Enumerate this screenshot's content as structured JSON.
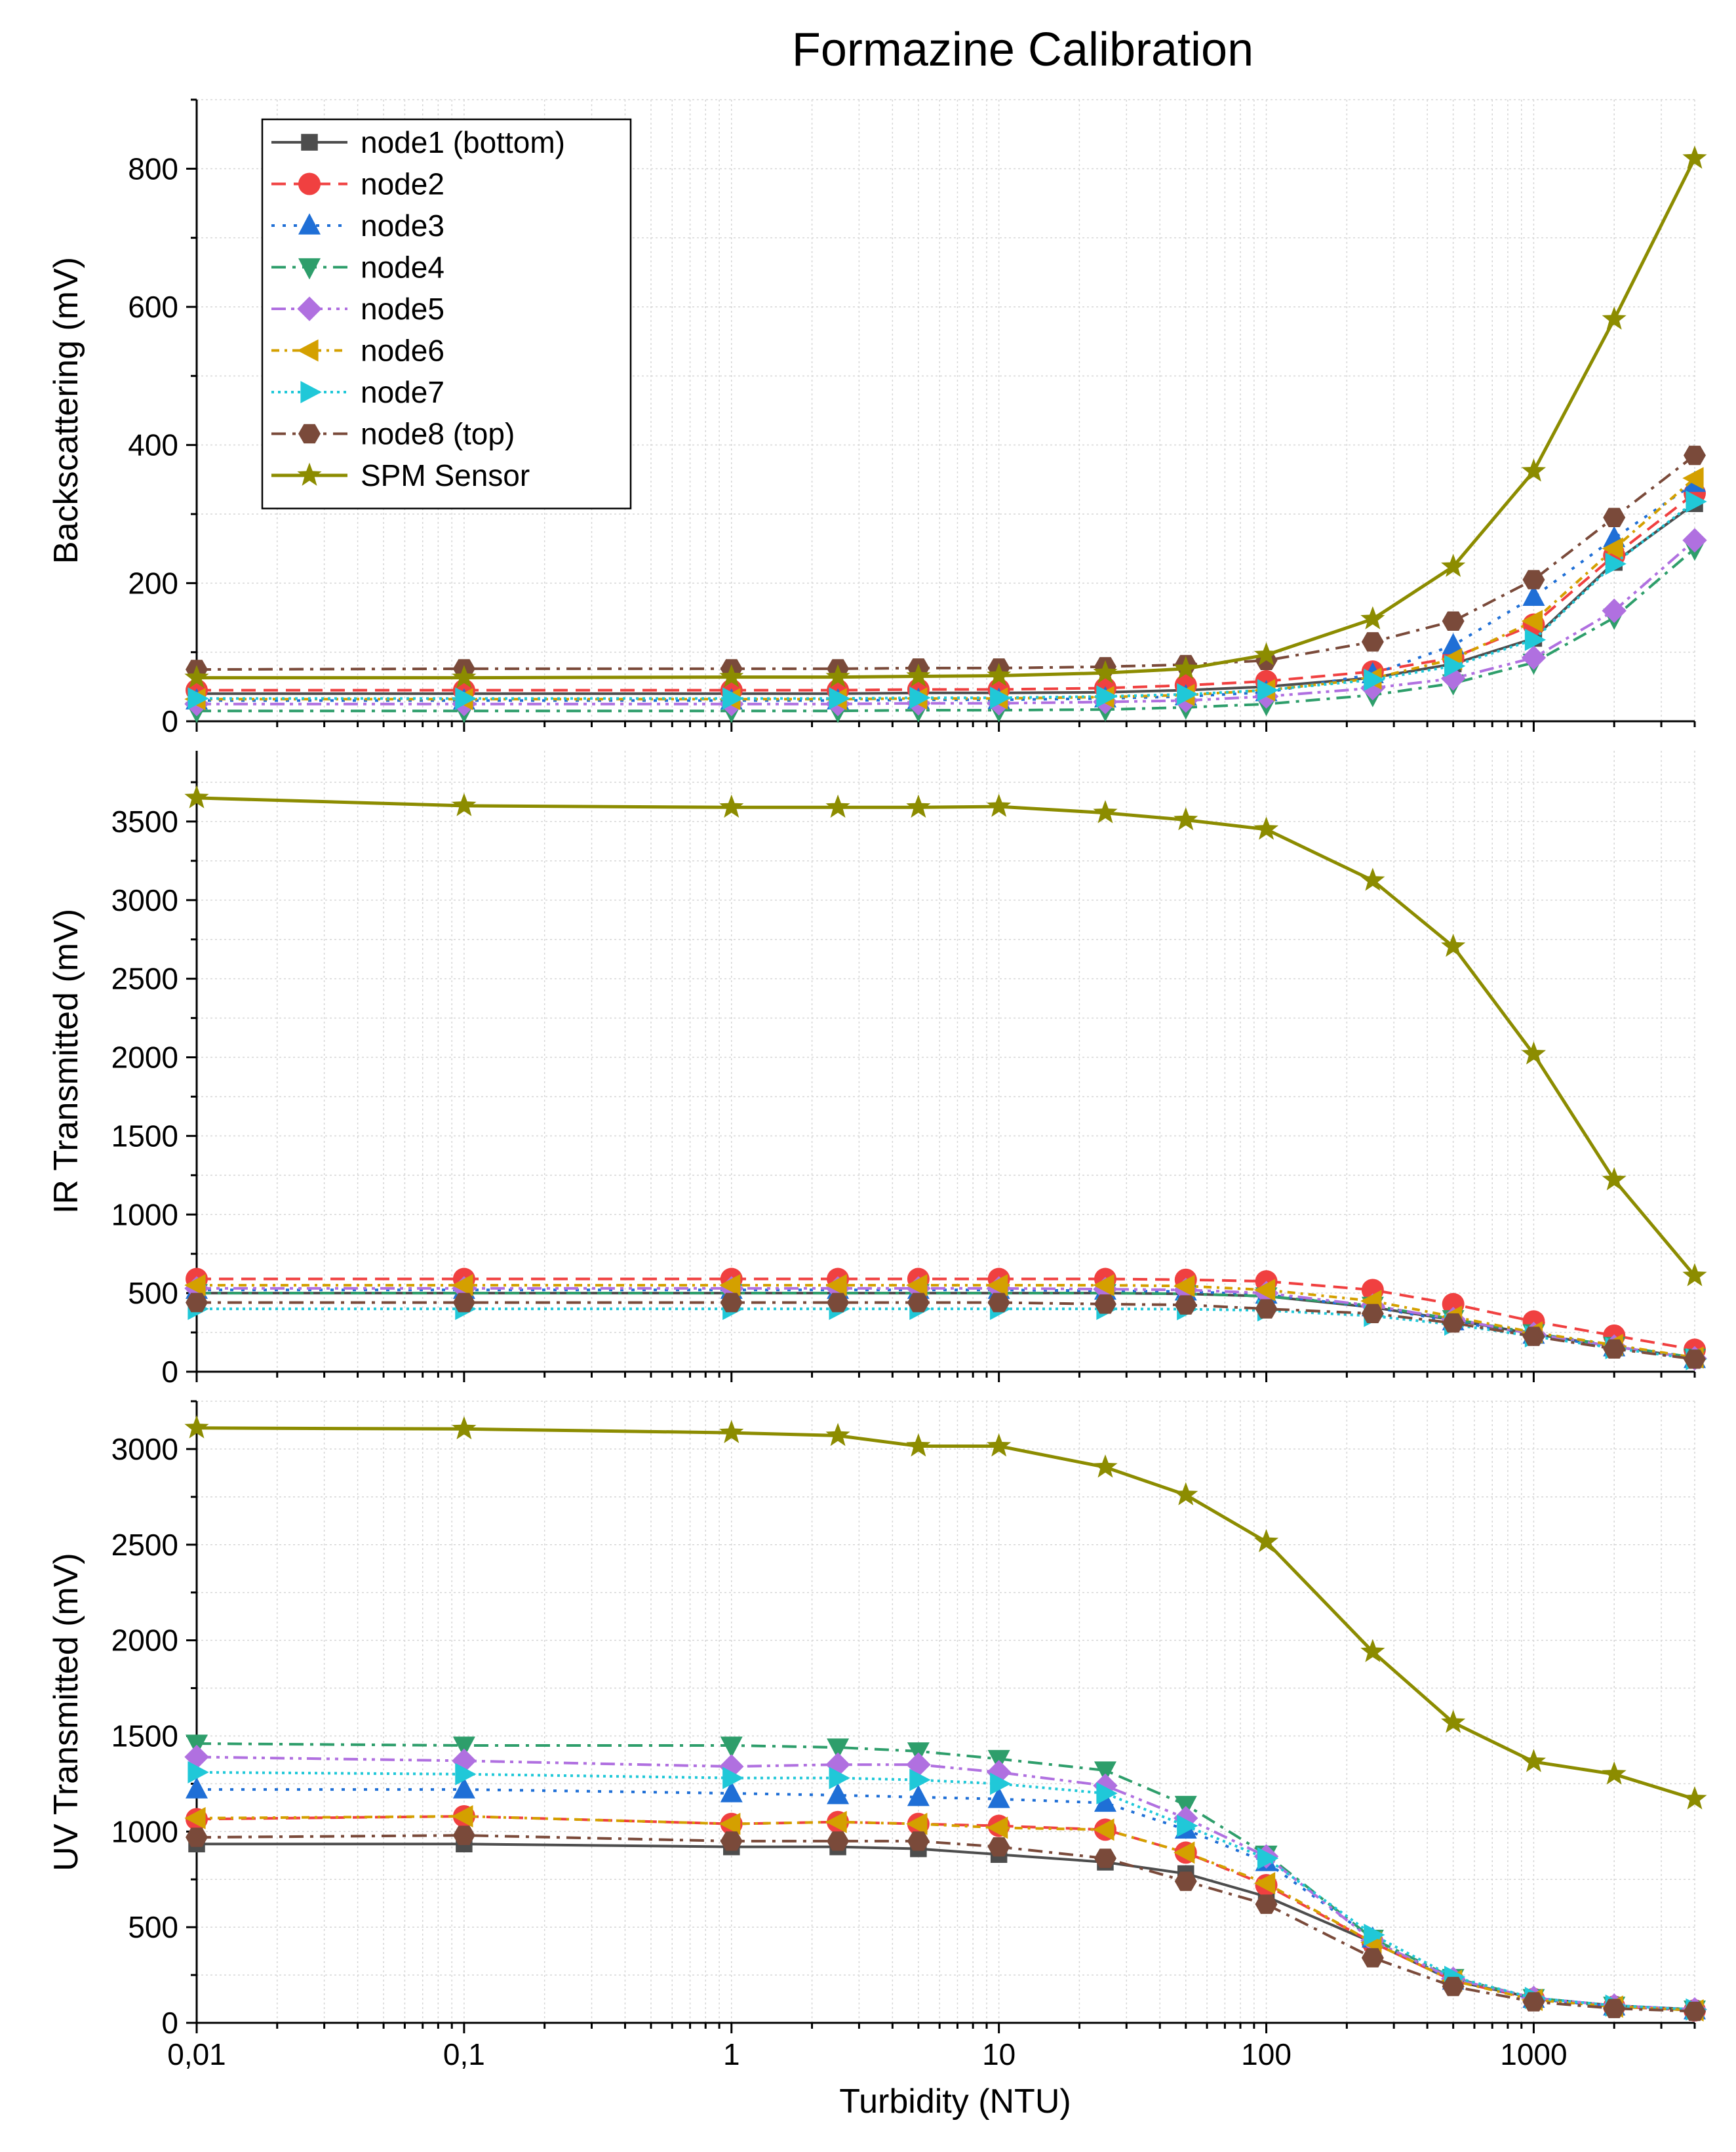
{
  "title": "Formazine Calibration",
  "chart_data": {
    "type": "line",
    "xscale": "log",
    "xlabel": "Turbidity (NTU)",
    "xlim": [
      0.01,
      4000
    ],
    "xticks": [
      {
        "value": 0.01,
        "label": "0,01"
      },
      {
        "value": 0.1,
        "label": "0,1"
      },
      {
        "value": 1,
        "label": "1"
      },
      {
        "value": 10,
        "label": "10"
      },
      {
        "value": 100,
        "label": "100"
      },
      {
        "value": 1000,
        "label": "1000"
      }
    ],
    "x": [
      0.01,
      0.1,
      1,
      2.5,
      5,
      10,
      25,
      50,
      100,
      250,
      500,
      1000,
      2000,
      4000
    ],
    "legend": {
      "position": "top-left",
      "entries": [
        "node1 (bottom)",
        "node2",
        "node3",
        "node4",
        "node5",
        "node6",
        "node7",
        "node8 (top)",
        "SPM Sensor"
      ]
    },
    "series_styles": [
      {
        "name": "node1 (bottom)",
        "color": "#4d4d4d",
        "marker": "square",
        "dash": "solid"
      },
      {
        "name": "node2",
        "color": "#f04040",
        "marker": "circle",
        "dash": "dash"
      },
      {
        "name": "node3",
        "color": "#1f6fd6",
        "marker": "triangle-up",
        "dash": "dot"
      },
      {
        "name": "node4",
        "color": "#2e9e6b",
        "marker": "triangle-down",
        "dash": "dashdot"
      },
      {
        "name": "node5",
        "color": "#b070e0",
        "marker": "diamond",
        "dash": "dashdotdot"
      },
      {
        "name": "node6",
        "color": "#d4a000",
        "marker": "triangle-left",
        "dash": "shortdashdot"
      },
      {
        "name": "node7",
        "color": "#20c8d8",
        "marker": "triangle-right",
        "dash": "shortdot"
      },
      {
        "name": "node8 (top)",
        "color": "#7a4a3a",
        "marker": "hexagon",
        "dash": "dashdot"
      },
      {
        "name": "SPM Sensor",
        "color": "#8c8c00",
        "marker": "star",
        "dash": "solid"
      }
    ],
    "panels": [
      {
        "ylabel": "Backscattering (mV)",
        "ylim": [
          0,
          900
        ],
        "yticks": [
          0,
          200,
          400,
          600,
          800
        ],
        "series": [
          {
            "name": "node1 (bottom)",
            "values": [
              40,
              40,
              40,
              40,
              41,
              41,
              42,
              45,
              50,
              63,
              83,
              120,
              230,
              315
            ]
          },
          {
            "name": "node2",
            "values": [
              45,
              45,
              45,
              45,
              46,
              46,
              48,
              52,
              58,
              72,
              92,
              140,
              240,
              330
            ]
          },
          {
            "name": "node3",
            "values": [
              30,
              30,
              30,
              30,
              31,
              31,
              33,
              36,
              42,
              68,
              110,
              180,
              265,
              345
            ]
          },
          {
            "name": "node4",
            "values": [
              15,
              15,
              15,
              15,
              16,
              16,
              17,
              20,
              25,
              38,
              55,
              85,
              150,
              250
            ]
          },
          {
            "name": "node5",
            "values": [
              25,
              25,
              25,
              25,
              26,
              26,
              28,
              30,
              36,
              48,
              62,
              92,
              160,
              262
            ]
          },
          {
            "name": "node6",
            "values": [
              32,
              32,
              32,
              32,
              33,
              33,
              35,
              38,
              45,
              62,
              90,
              145,
              250,
              352
            ]
          },
          {
            "name": "node7",
            "values": [
              33,
              33,
              33,
              33,
              34,
              34,
              36,
              39,
              45,
              60,
              80,
              118,
              228,
              318
            ]
          },
          {
            "name": "node8 (top)",
            "values": [
              75,
              76,
              76,
              76,
              77,
              77,
              79,
              82,
              88,
              115,
              145,
              205,
              295,
              385
            ]
          },
          {
            "name": "SPM Sensor",
            "values": [
              63,
              63,
              64,
              64,
              65,
              66,
              70,
              76,
              96,
              148,
              224,
              362,
              582,
              815
            ]
          }
        ]
      },
      {
        "ylabel": "IR Transmitted (mV)",
        "ylim": [
          0,
          3950
        ],
        "yticks": [
          0,
          500,
          1000,
          1500,
          2000,
          2500,
          3000,
          3500
        ],
        "series": [
          {
            "name": "node1 (bottom)",
            "values": [
              500,
              500,
              500,
              500,
              500,
              500,
              500,
              495,
              480,
              410,
              330,
              240,
              160,
              85
            ]
          },
          {
            "name": "node2",
            "values": [
              590,
              590,
              590,
              590,
              590,
              590,
              590,
              585,
              575,
              520,
              430,
              320,
              230,
              140
            ]
          },
          {
            "name": "node3",
            "values": [
              520,
              520,
              520,
              520,
              520,
              520,
              515,
              510,
              490,
              410,
              320,
              235,
              155,
              80
            ]
          },
          {
            "name": "node4",
            "values": [
              500,
              500,
              500,
              500,
              500,
              500,
              500,
              495,
              480,
              420,
              335,
              245,
              165,
              90
            ]
          },
          {
            "name": "node5",
            "values": [
              530,
              530,
              530,
              530,
              530,
              530,
              525,
              520,
              500,
              420,
              335,
              240,
              160,
              85
            ]
          },
          {
            "name": "node6",
            "values": [
              550,
              550,
              550,
              550,
              550,
              550,
              550,
              545,
              520,
              450,
              350,
              250,
              170,
              90
            ]
          },
          {
            "name": "node7",
            "values": [
              400,
              400,
              400,
              400,
              400,
              400,
              400,
              398,
              390,
              355,
              300,
              225,
              150,
              80
            ]
          },
          {
            "name": "node8 (top)",
            "values": [
              440,
              440,
              440,
              440,
              440,
              440,
              430,
              425,
              400,
              370,
              310,
              225,
              145,
              80
            ]
          },
          {
            "name": "SPM Sensor",
            "values": [
              3650,
              3600,
              3590,
              3590,
              3590,
              3595,
              3555,
              3510,
              3450,
              3125,
              2705,
              2020,
              1220,
              610
            ]
          }
        ]
      },
      {
        "ylabel": "UV Transmitted (mV)",
        "ylim": [
          0,
          3250
        ],
        "yticks": [
          0,
          500,
          1000,
          1500,
          2000,
          2500,
          3000
        ],
        "series": [
          {
            "name": "node1 (bottom)",
            "values": [
              935,
              935,
              920,
              920,
              910,
              880,
              840,
              780,
              660,
              420,
              220,
              130,
              90,
              70
            ]
          },
          {
            "name": "node2",
            "values": [
              1065,
              1080,
              1040,
              1050,
              1040,
              1030,
              1010,
              890,
              720,
              420,
              220,
              125,
              85,
              65
            ]
          },
          {
            "name": "node3",
            "values": [
              1220,
              1220,
              1200,
              1190,
              1180,
              1170,
              1150,
              1010,
              840,
              440,
              220,
              125,
              85,
              65
            ]
          },
          {
            "name": "node4",
            "values": [
              1460,
              1450,
              1450,
              1440,
              1420,
              1380,
              1320,
              1140,
              880,
              440,
              235,
              130,
              90,
              70
            ]
          },
          {
            "name": "node5",
            "values": [
              1390,
              1370,
              1340,
              1350,
              1350,
              1310,
              1240,
              1070,
              870,
              430,
              230,
              130,
              90,
              70
            ]
          },
          {
            "name": "node6",
            "values": [
              1070,
              1080,
              1040,
              1050,
              1040,
              1020,
              1010,
              890,
              730,
              420,
              220,
              120,
              85,
              65
            ]
          },
          {
            "name": "node7",
            "values": [
              1310,
              1300,
              1280,
              1280,
              1270,
              1250,
              1200,
              1030,
              860,
              460,
              240,
              130,
              90,
              70
            ]
          },
          {
            "name": "node8 (top)",
            "values": [
              970,
              980,
              950,
              950,
              950,
              920,
              860,
              740,
              620,
              340,
              190,
              110,
              75,
              60
            ]
          },
          {
            "name": "SPM Sensor",
            "values": [
              3110,
              3105,
              3085,
              3070,
              3015,
              3015,
              2905,
              2760,
              2515,
              1940,
              1570,
              1365,
              1300,
              1170
            ]
          }
        ]
      }
    ]
  }
}
